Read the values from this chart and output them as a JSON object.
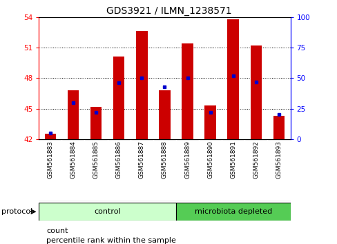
{
  "title": "GDS3921 / ILMN_1238571",
  "samples": [
    "GSM561883",
    "GSM561884",
    "GSM561885",
    "GSM561886",
    "GSM561887",
    "GSM561888",
    "GSM561889",
    "GSM561890",
    "GSM561891",
    "GSM561892",
    "GSM561893"
  ],
  "counts": [
    42.5,
    46.8,
    45.2,
    50.1,
    52.6,
    46.8,
    51.4,
    45.3,
    53.8,
    51.2,
    44.3
  ],
  "percentile_ranks": [
    5.0,
    30.0,
    22.0,
    46.0,
    50.0,
    43.0,
    50.0,
    22.0,
    52.0,
    47.0,
    20.0
  ],
  "groups": [
    "control",
    "control",
    "control",
    "control",
    "control",
    "control",
    "microbiota depleted",
    "microbiota depleted",
    "microbiota depleted",
    "microbiota depleted",
    "microbiota depleted"
  ],
  "n_control": 6,
  "ylim_left": [
    42,
    54
  ],
  "ylim_right": [
    0,
    100
  ],
  "yticks_left": [
    42,
    45,
    48,
    51,
    54
  ],
  "yticks_right": [
    0,
    25,
    50,
    75,
    100
  ],
  "bar_color": "#cc0000",
  "dot_color": "#0000cc",
  "bar_width": 0.5,
  "control_color": "#ccffcc",
  "microbiota_color": "#55cc55",
  "xticklabel_bg": "#d3d3d3",
  "protocol_label": "protocol",
  "control_label": "control",
  "microbiota_label": "microbiota depleted",
  "legend_count": "count",
  "legend_percentile": "percentile rank within the sample",
  "title_fontsize": 10,
  "tick_fontsize": 7.5,
  "label_fontsize": 8,
  "xtick_fontsize": 6.5
}
